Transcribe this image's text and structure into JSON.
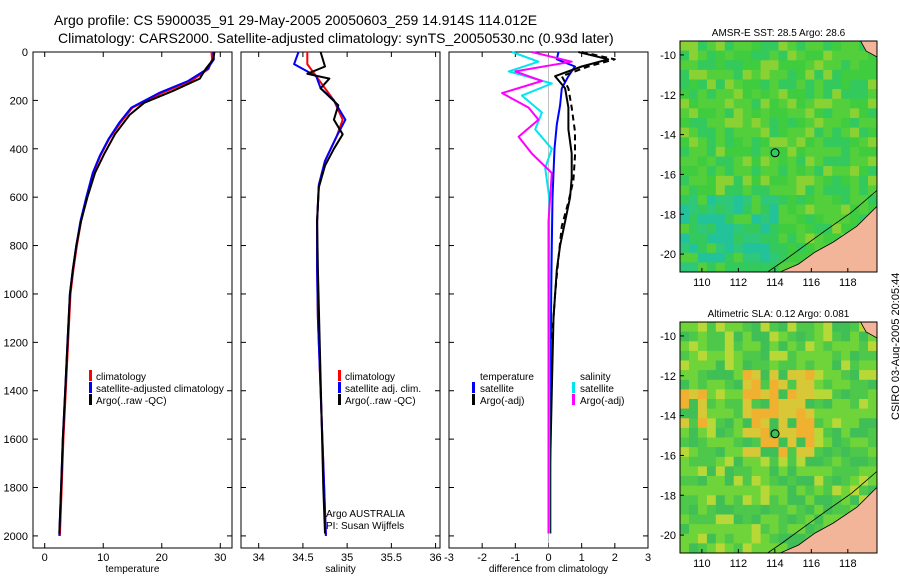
{
  "header": {
    "title_line1": "Argo profile: CS 5900035_91 29-May-2005 20050603_259 14.914S 114.012E",
    "title_line2": "Climatology: CARS2000. Satellite-adjusted climatology: synTS_20050530.nc (0.93d later)"
  },
  "footer": {
    "stamp": "CSIRO 03-Aug-2005 20:05:44"
  },
  "colors": {
    "climatology": "#ff0000",
    "satellite": "#0000ff",
    "argo": "#000000",
    "salinity_satellite": "#00e5ee",
    "salinity_argo": "#ff00ff"
  },
  "chart_data": [
    {
      "id": "temperature",
      "type": "line",
      "xlabel": "temperature",
      "ylabel": "",
      "xlim": [
        -2,
        32
      ],
      "ylim": [
        2050,
        0
      ],
      "xticks": [
        0,
        10,
        20,
        30
      ],
      "yticks": [
        0,
        200,
        400,
        600,
        800,
        1000,
        1200,
        1400,
        1600,
        1800,
        2000
      ],
      "legend": [
        "climatology",
        "satellite-adjusted climatology",
        "Argo(..raw -QC)"
      ],
      "series": [
        {
          "name": "climatology",
          "color": "#ff0000",
          "style": "solid",
          "x": [
            28.5,
            28.6,
            28.0,
            25,
            20,
            15,
            13,
            11,
            9.5,
            8.3,
            7.2,
            6.2,
            5.5,
            4.9,
            4.4,
            4.0,
            3.6,
            3.2,
            2.9,
            2.6
          ],
          "y": [
            0,
            30,
            70,
            120,
            170,
            230,
            290,
            360,
            430,
            500,
            600,
            700,
            800,
            900,
            1000,
            1200,
            1400,
            1600,
            1800,
            2000
          ]
        },
        {
          "name": "satellite-adjusted climatology",
          "color": "#0000ff",
          "style": "solid",
          "x": [
            28.8,
            28.9,
            27.8,
            24.5,
            19.5,
            14.8,
            12.8,
            10.9,
            9.4,
            8.2,
            7.1,
            6.1,
            5.4,
            4.8,
            4.3,
            3.9,
            3.5,
            3.1,
            2.8,
            2.5
          ],
          "y": [
            0,
            30,
            70,
            120,
            170,
            230,
            290,
            360,
            430,
            500,
            600,
            700,
            800,
            900,
            1000,
            1200,
            1400,
            1600,
            1800,
            2000
          ]
        },
        {
          "name": "Argo(..raw -QC)",
          "color": "#000000",
          "style": "solid",
          "x": [
            29.0,
            28.8,
            27.5,
            26.5,
            22,
            17,
            14.5,
            12,
            10.2,
            8.6,
            7.3,
            6.2,
            5.4,
            4.8,
            4.3,
            3.9,
            3.5,
            3.1,
            2.8,
            2.5
          ],
          "y": [
            0,
            30,
            70,
            110,
            160,
            210,
            260,
            340,
            420,
            500,
            600,
            700,
            800,
            900,
            1000,
            1200,
            1400,
            1600,
            1800,
            1990
          ]
        }
      ]
    },
    {
      "id": "salinity",
      "type": "line",
      "xlabel": "salinity",
      "ylabel": "",
      "xlim": [
        33.8,
        36.05
      ],
      "ylim": [
        2050,
        0
      ],
      "xticks": [
        34,
        34.5,
        35,
        35.5,
        36
      ],
      "legend": [
        "climatology",
        "satellite adj. clim.",
        "Argo(..raw -QC)"
      ],
      "annotation": [
        "Argo AUSTRALIA",
        "PI: Susan Wijffels"
      ],
      "series": [
        {
          "name": "climatology",
          "color": "#ff0000",
          "style": "solid",
          "x": [
            34.55,
            34.55,
            34.65,
            34.75,
            34.85,
            34.95,
            34.88,
            34.75,
            34.68,
            34.66,
            34.66,
            34.67,
            34.69,
            34.71,
            34.73,
            34.76
          ],
          "y": [
            0,
            50,
            100,
            150,
            200,
            280,
            350,
            450,
            550,
            700,
            900,
            1100,
            1300,
            1500,
            1700,
            2000
          ]
        },
        {
          "name": "satellite adj. clim.",
          "color": "#0000ff",
          "style": "solid",
          "x": [
            34.45,
            34.4,
            34.65,
            34.7,
            34.85,
            34.98,
            34.88,
            34.75,
            34.68,
            34.66,
            34.66,
            34.67,
            34.69,
            34.71,
            34.73,
            34.76
          ],
          "y": [
            0,
            50,
            100,
            150,
            200,
            280,
            350,
            450,
            550,
            700,
            900,
            1100,
            1300,
            1500,
            1700,
            2000
          ]
        },
        {
          "name": "Argo(..raw -QC)",
          "color": "#000000",
          "style": "solid",
          "x": [
            34.7,
            34.75,
            34.55,
            34.8,
            34.7,
            34.9,
            34.85,
            34.95,
            34.85,
            34.75,
            34.68,
            34.66,
            34.67,
            34.69,
            34.71,
            34.73,
            34.75
          ],
          "y": [
            0,
            60,
            90,
            110,
            150,
            220,
            280,
            340,
            400,
            470,
            560,
            700,
            900,
            1200,
            1500,
            1800,
            1990
          ]
        }
      ]
    },
    {
      "id": "difference",
      "type": "line",
      "xlabel": "difference from climatology",
      "ylabel": "",
      "xlim": [
        -3,
        3
      ],
      "ylim": [
        2050,
        0
      ],
      "xticks": [
        -3,
        -2,
        -1,
        0,
        1,
        2,
        3
      ],
      "legend_temperature": [
        "temperature",
        "satellite",
        "Argo(-adj)"
      ],
      "legend_salinity": [
        "salinity",
        "satellite",
        "Argo(-adj)"
      ],
      "series": [
        {
          "name": "temperature satellite",
          "color": "#0000ff",
          "style": "solid",
          "x": [
            0.3,
            0.25,
            0.8,
            0.6,
            0.4,
            0.35,
            0.25,
            0.18,
            0.15,
            0.12,
            0.1,
            0.08,
            0.06,
            0.05,
            0.05
          ],
          "y": [
            0,
            30,
            60,
            100,
            150,
            220,
            300,
            400,
            500,
            600,
            800,
            1000,
            1400,
            1800,
            1990
          ]
        },
        {
          "name": "temperature Argo(-adj)",
          "color": "#000000",
          "style": "solid",
          "x": [
            0.9,
            1.8,
            1.0,
            0.2,
            0.5,
            0.6,
            0.6,
            0.7,
            0.7,
            0.65,
            0.5,
            0.35,
            0.25,
            0.15,
            0.1,
            0.05,
            0.05
          ],
          "y": [
            0,
            30,
            60,
            100,
            150,
            230,
            320,
            420,
            520,
            600,
            700,
            800,
            900,
            1100,
            1400,
            1700,
            1990
          ]
        },
        {
          "name": "temperature Argo(-adj) dashed",
          "color": "#000000",
          "style": "dashed",
          "x": [
            1.0,
            2.0,
            1.2,
            0.4,
            0.6,
            0.7,
            0.8,
            0.8,
            0.75,
            0.6,
            0.4,
            0.3,
            0.2,
            0.1
          ],
          "y": [
            0,
            30,
            60,
            100,
            150,
            230,
            330,
            430,
            530,
            620,
            720,
            850,
            1000,
            1200
          ]
        },
        {
          "name": "salinity satellite",
          "color": "#00e5ee",
          "style": "solid",
          "x": [
            -1.1,
            -0.3,
            -1.2,
            0.1,
            -0.8,
            -0.2,
            -0.4,
            0.1,
            -0.1,
            0.02,
            0.02,
            0.02
          ],
          "y": [
            0,
            40,
            80,
            130,
            180,
            250,
            320,
            400,
            480,
            600,
            1200,
            1990
          ]
        },
        {
          "name": "salinity Argo(-adj)",
          "color": "#ff00ff",
          "style": "solid",
          "x": [
            -0.5,
            0.7,
            -1.0,
            -0.2,
            -1.4,
            -0.6,
            -0.3,
            -0.9,
            -0.5,
            0.1,
            0.0,
            0.0,
            0.0
          ],
          "y": [
            0,
            40,
            80,
            120,
            170,
            230,
            280,
            350,
            420,
            500,
            700,
            1200,
            1990
          ]
        }
      ]
    },
    {
      "id": "sst_map",
      "type": "heatmap",
      "title": "AMSR-E SST: 28.5 Argo: 28.6",
      "xlim": [
        108.8,
        119.6
      ],
      "ylim": [
        -20.9,
        -9.3
      ],
      "xticks": [
        110,
        112,
        114,
        116,
        118
      ],
      "yticks": [
        -10,
        -12,
        -14,
        -16,
        -18,
        -20
      ],
      "marker": {
        "lon": 114.012,
        "lat": -14.914
      }
    },
    {
      "id": "sla_map",
      "type": "heatmap",
      "title": "Altimetric SLA: 0.12 Argo: 0.081",
      "xlim": [
        108.8,
        119.6
      ],
      "ylim": [
        -20.9,
        -9.3
      ],
      "xticks": [
        110,
        112,
        114,
        116,
        118
      ],
      "yticks": [
        -10,
        -12,
        -14,
        -16,
        -18,
        -20
      ],
      "marker": {
        "lon": 114.012,
        "lat": -14.914
      }
    }
  ]
}
